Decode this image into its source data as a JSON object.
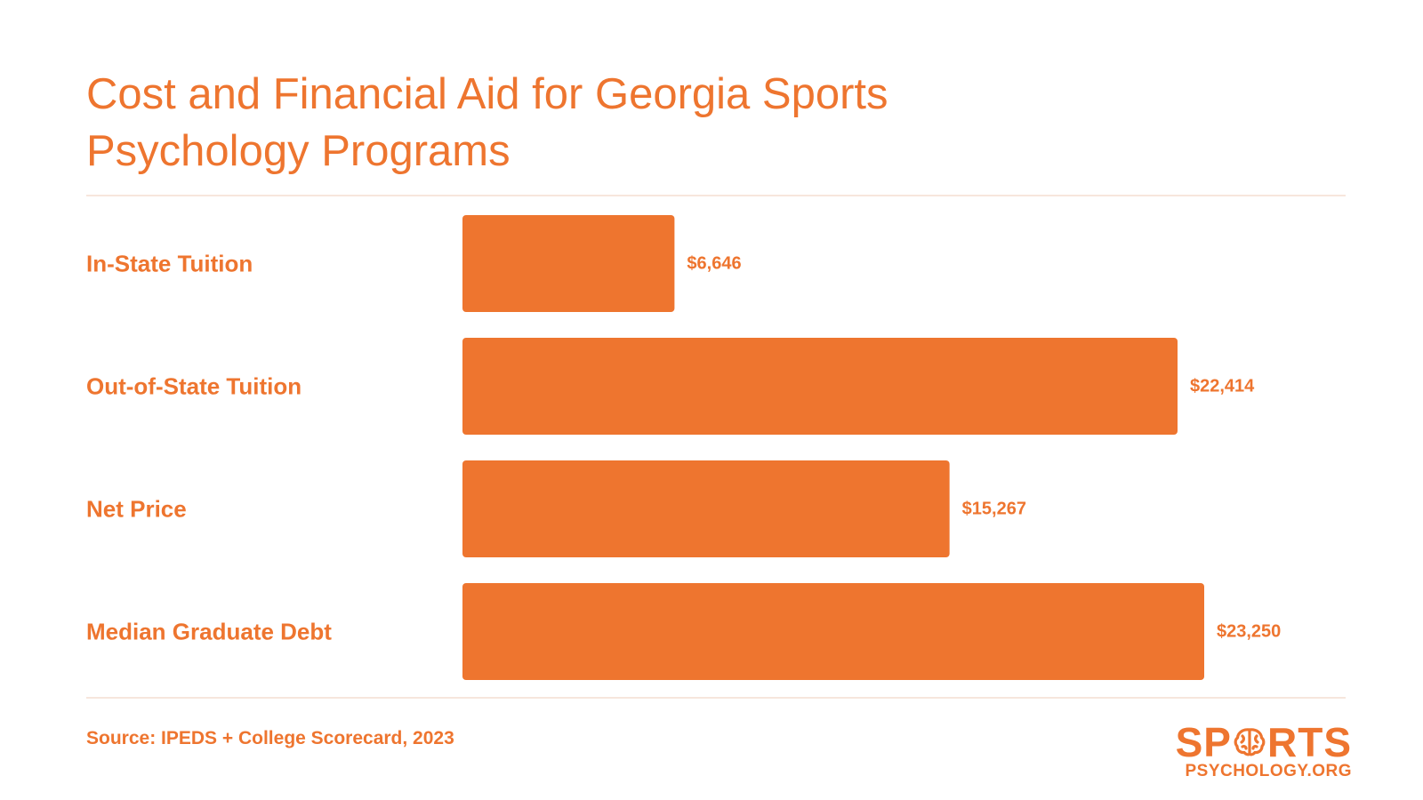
{
  "colors": {
    "accent": "#EE752F",
    "divider": "#F7E6DC",
    "background": "#FFFFFF"
  },
  "chart_data": {
    "type": "bar",
    "orientation": "horizontal",
    "title": "Cost and Financial Aid for Georgia Sports Psychology Programs",
    "categories": [
      "In-State Tuition",
      "Out-of-State Tuition",
      "Net Price",
      "Median Graduate Debt"
    ],
    "values": [
      6646,
      22414,
      15267,
      23250
    ],
    "value_labels": [
      "$6,646",
      "$22,414",
      "$15,267",
      "$23,250"
    ],
    "xlim": [
      0,
      23250
    ],
    "grid": false,
    "legend": "none"
  },
  "footer": {
    "source": "Source: IPEDS + College Scorecard, 2023"
  },
  "logo": {
    "word_start": "SP",
    "word_end": "RTS",
    "sub": "PSYCHOLOGY.ORG",
    "icon": "brain-icon"
  }
}
